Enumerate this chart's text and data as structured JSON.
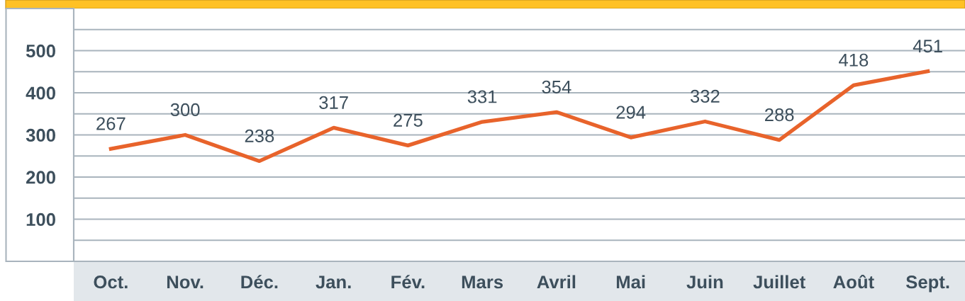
{
  "chart_data": {
    "type": "line",
    "categories": [
      "Oct.",
      "Nov.",
      "Déc.",
      "Jan.",
      "Fév.",
      "Mars",
      "Avril",
      "Mai",
      "Juin",
      "Juillet",
      "Août",
      "Sept."
    ],
    "series": [
      {
        "color": "#e8632b",
        "values": [
          267,
          300,
          238,
          317,
          275,
          331,
          354,
          294,
          332,
          288,
          418,
          451
        ]
      }
    ],
    "ylim": [
      0,
      600
    ],
    "yticks": [
      {
        "value": 50,
        "label": null
      },
      100,
      {
        "value": 150,
        "label": null
      },
      200,
      {
        "value": 250,
        "label": null
      },
      300,
      {
        "value": 350,
        "label": null
      },
      400,
      {
        "value": 450,
        "label": null
      },
      500,
      {
        "value": 550,
        "label": null
      }
    ],
    "grid": "y",
    "data_labels": true,
    "marker": "none",
    "line_style": "solid"
  }
}
